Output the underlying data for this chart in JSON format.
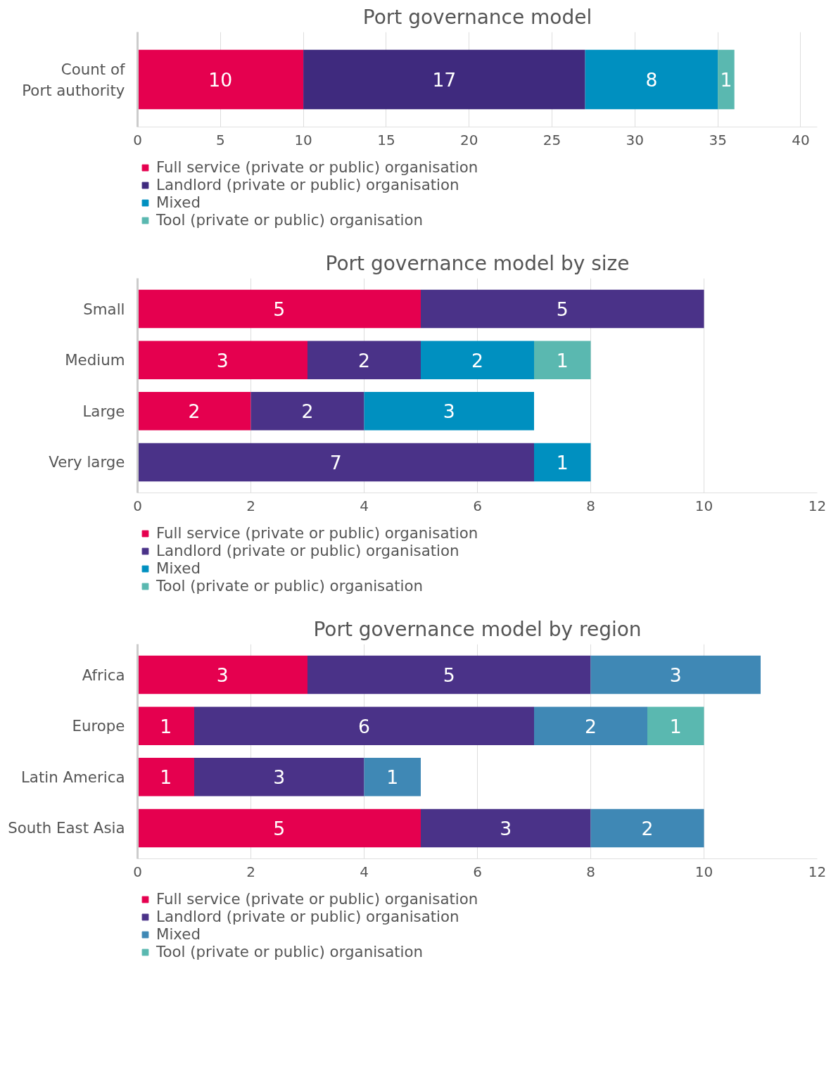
{
  "chart_data": [
    {
      "type": "bar",
      "orientation": "horizontal",
      "stacked": true,
      "data_labels": true,
      "title": "Port governance model",
      "categories": [
        "Count of\nPort authority"
      ],
      "xlim": [
        0,
        41
      ],
      "xticks": [
        0,
        5,
        10,
        15,
        20,
        25,
        30,
        35,
        40
      ],
      "grid": "x",
      "legend": "bottom",
      "series": [
        {
          "name": "Full service (private or public) organisation",
          "color": "#e5004f",
          "values": [
            10
          ]
        },
        {
          "name": "Landlord (private or public) organisation",
          "color": "#3f2a7e",
          "values": [
            17
          ]
        },
        {
          "name": "Mixed",
          "color": "#0090c0",
          "values": [
            8
          ]
        },
        {
          "name": "Tool (private or public) organisation",
          "color": "#5ab8b0",
          "values": [
            1
          ]
        }
      ]
    },
    {
      "type": "bar",
      "orientation": "horizontal",
      "stacked": true,
      "data_labels": true,
      "title": "Port governance model by size",
      "categories": [
        "Small",
        "Medium",
        "Large",
        "Very large"
      ],
      "xlim": [
        0,
        12
      ],
      "xticks": [
        0,
        2,
        4,
        6,
        8,
        10,
        12
      ],
      "grid": "x",
      "legend": "bottom",
      "series": [
        {
          "name": "Full service (private or public) organisation",
          "color": "#e5004f",
          "values": [
            5,
            3,
            2,
            null
          ]
        },
        {
          "name": "Landlord (private or public) organisation",
          "color": "#4a3288",
          "values": [
            5,
            2,
            2,
            7
          ]
        },
        {
          "name": "Mixed",
          "color": "#0090c0",
          "values": [
            null,
            2,
            3,
            1
          ]
        },
        {
          "name": "Tool (private or public) organisation",
          "color": "#5ab8b0",
          "values": [
            null,
            1,
            null,
            null
          ]
        }
      ]
    },
    {
      "type": "bar",
      "orientation": "horizontal",
      "stacked": true,
      "data_labels": true,
      "title": "Port governance model by region",
      "categories": [
        "Africa",
        "Europe",
        "Latin America",
        "South East Asia"
      ],
      "xlim": [
        0,
        12
      ],
      "xticks": [
        0,
        2,
        4,
        6,
        8,
        10,
        12
      ],
      "grid": "x",
      "legend": "bottom",
      "series": [
        {
          "name": "Full service (private or public) organisation",
          "color": "#e5004f",
          "values": [
            3,
            1,
            1,
            5
          ]
        },
        {
          "name": "Landlord (private or public) organisation",
          "color": "#4a3288",
          "values": [
            5,
            6,
            3,
            3
          ]
        },
        {
          "name": "Mixed",
          "color": "#3f88b5",
          "values": [
            3,
            2,
            1,
            2
          ]
        },
        {
          "name": "Tool (private or public) organisation",
          "color": "#5ab8b0",
          "values": [
            null,
            1,
            null,
            null
          ]
        }
      ]
    }
  ]
}
